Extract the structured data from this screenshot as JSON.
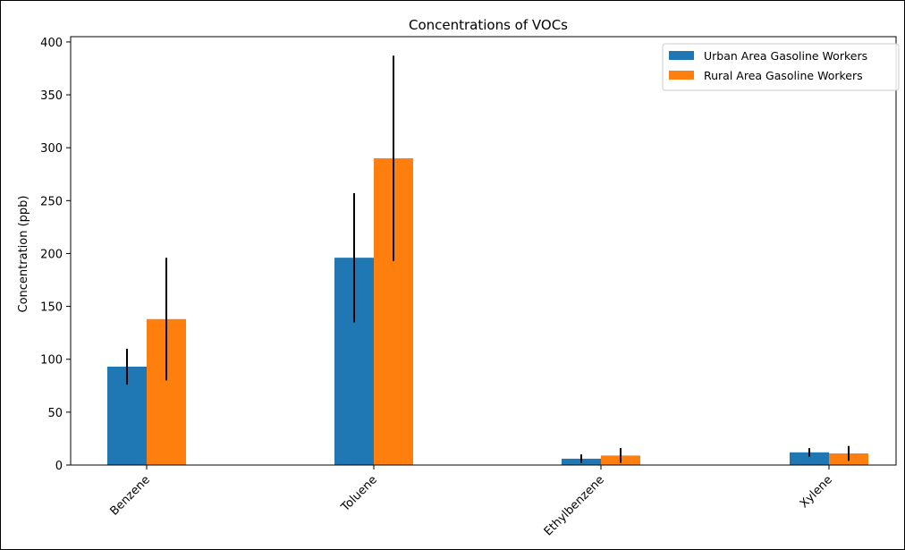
{
  "chart_data": {
    "type": "bar",
    "title": "Concentrations of VOCs",
    "xlabel": "",
    "ylabel": "Concentration (ppb)",
    "categories": [
      "Benzene",
      "Toluene",
      "Ethylbenzene",
      "Xylene"
    ],
    "ylim": [
      0,
      405
    ],
    "yticks": [
      0,
      50,
      100,
      150,
      200,
      250,
      300,
      350,
      400
    ],
    "grid": false,
    "legend_position": "top-right",
    "series": [
      {
        "name": "Urban Area Gasoline Workers",
        "color": "#1f77b4",
        "values": [
          93,
          196,
          6,
          12
        ],
        "errors": [
          17,
          61,
          4,
          4
        ]
      },
      {
        "name": "Rural Area Gasoline Workers",
        "color": "#ff7f0e",
        "values": [
          138,
          290,
          9,
          11
        ],
        "errors": [
          58,
          97,
          7,
          7
        ]
      }
    ]
  }
}
